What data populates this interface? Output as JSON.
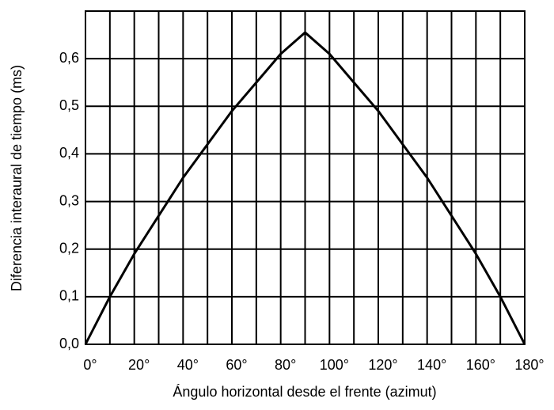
{
  "chart_data": {
    "type": "line",
    "x_label": "Ángulo horizontal desde el frente (azimut)",
    "y_label": "Diferencia interaural de tiempo (ms)",
    "x": [
      0,
      10,
      20,
      30,
      40,
      50,
      60,
      70,
      80,
      90,
      100,
      110,
      120,
      130,
      140,
      150,
      160,
      170,
      180
    ],
    "values": [
      0,
      0.1,
      0.19,
      0.27,
      0.35,
      0.42,
      0.49,
      0.55,
      0.61,
      0.655,
      0.61,
      0.55,
      0.49,
      0.42,
      0.35,
      0.27,
      0.19,
      0.1,
      0
    ],
    "color": "#000000",
    "xlim": [
      0,
      180
    ],
    "ylim": [
      0,
      0.7
    ],
    "xticks": [
      {
        "value": 0,
        "label": "0°"
      },
      {
        "value": 20,
        "label": "20°"
      },
      {
        "value": 40,
        "label": "40°"
      },
      {
        "value": 60,
        "label": "60°"
      },
      {
        "value": 80,
        "label": "80°"
      },
      {
        "value": 100,
        "label": "100°"
      },
      {
        "value": 120,
        "label": "120°"
      },
      {
        "value": 140,
        "label": "140°"
      },
      {
        "value": 160,
        "label": "160°"
      },
      {
        "value": 180,
        "label": "180°"
      }
    ],
    "xminorticks": [
      10,
      30,
      50,
      70,
      90,
      110,
      130,
      150,
      170
    ],
    "yticks": [
      {
        "value": 0,
        "label": "0,0"
      },
      {
        "value": 0.1,
        "label": "0,1"
      },
      {
        "value": 0.2,
        "label": "0,2"
      },
      {
        "value": 0.3,
        "label": "0,3"
      },
      {
        "value": 0.4,
        "label": "0,4"
      },
      {
        "value": 0.5,
        "label": "0,5"
      },
      {
        "value": 0.6,
        "label": "0,6"
      }
    ],
    "grid": true
  }
}
